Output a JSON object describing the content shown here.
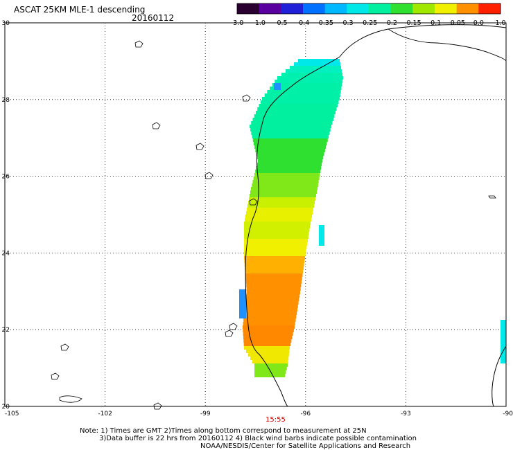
{
  "title": "ASCAT 25KM MLE-1 descending",
  "date": "20160112",
  "time_label": "15:55",
  "footnote": {
    "line1": "Note: 1) Times are GMT 2)Times along bottom correspond to measurement at 25N",
    "line2": "3)Data buffer is 22 hrs from 20160112 4) Black wind barbs indicate possible contamination",
    "line3": "NOAA/NESDIS/Center for Satellite Applications and Research"
  },
  "colorbar": {
    "labels": [
      "-3.0",
      "-1.0",
      "-0.5",
      "-0.4",
      "-0.35",
      "-0.3",
      "-0.25",
      "-0.2",
      "-0.15",
      "-0.1",
      "-0.05",
      "0.0",
      "1.0"
    ],
    "colors": [
      "#2a0030",
      "#5a00a0",
      "#2020d8",
      "#0070ff",
      "#00b8ff",
      "#00e8e8",
      "#00f0a0",
      "#30e030",
      "#a0e800",
      "#f0f000",
      "#ff9000",
      "#ff2000"
    ]
  },
  "chart_data": {
    "type": "heatmap",
    "title": "ASCAT 25KM MLE-1 descending",
    "xlim": [
      -105,
      -90
    ],
    "ylim": [
      20,
      30
    ],
    "x_ticks": [
      "-105",
      "-102",
      "-99",
      "-96",
      "-93",
      "-90"
    ],
    "y_ticks": [
      "30",
      "28",
      "26",
      "24",
      "22",
      "20"
    ],
    "grid": true
  }
}
